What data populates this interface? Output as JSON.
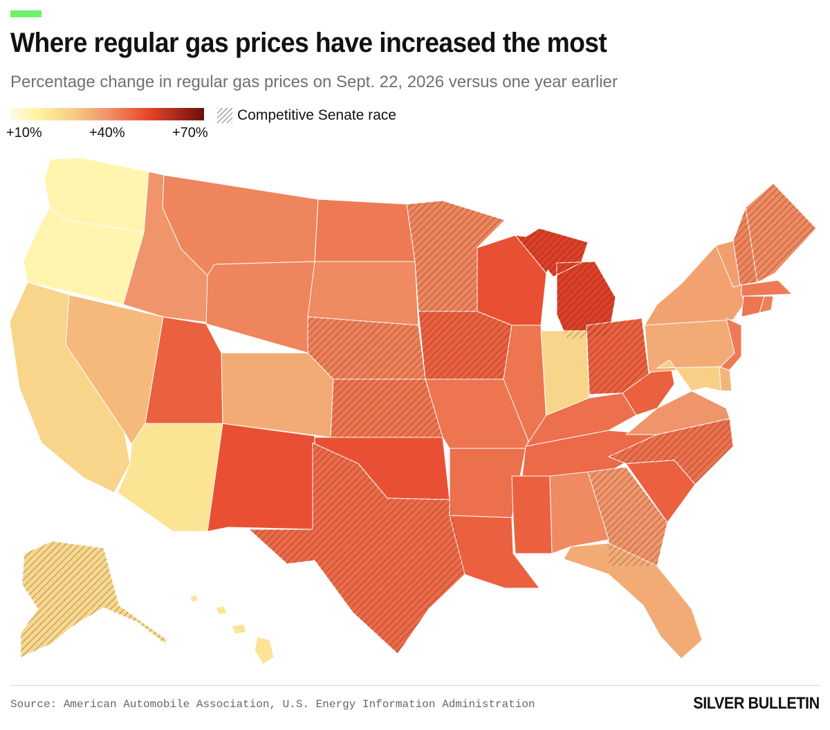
{
  "header": {
    "title": "Where regular gas prices have increased the most",
    "subtitle": "Percentage change in regular gas prices on Sept. 22, 2026 versus one year earlier",
    "accent_color": "#6ef26e"
  },
  "legend": {
    "ticks": [
      "+10%",
      "+40%",
      "+70%"
    ],
    "tick_values": [
      10,
      40,
      70
    ],
    "scale_min": 5,
    "scale_max": 75,
    "hatch_label": "Competitive Senate race",
    "stops": [
      {
        "value": 5,
        "color": "#fdfbe4"
      },
      {
        "value": 15,
        "color": "#fff3a0"
      },
      {
        "value": 27,
        "color": "#f7cf86"
      },
      {
        "value": 40,
        "color": "#f0956a"
      },
      {
        "value": 55,
        "color": "#e8452a"
      },
      {
        "value": 75,
        "color": "#6b0f0f"
      }
    ]
  },
  "map_data": {
    "metric": "Percentage change in regular gas prices",
    "states": [
      {
        "abbr": "WA",
        "value": 13,
        "competitive": false
      },
      {
        "abbr": "OR",
        "value": 13,
        "competitive": false
      },
      {
        "abbr": "CA",
        "value": 25,
        "competitive": false
      },
      {
        "abbr": "NV",
        "value": 32,
        "competitive": false
      },
      {
        "abbr": "ID",
        "value": 40,
        "competitive": false
      },
      {
        "abbr": "MT",
        "value": 43,
        "competitive": false
      },
      {
        "abbr": "WY",
        "value": 43,
        "competitive": false
      },
      {
        "abbr": "UT",
        "value": 50,
        "competitive": false
      },
      {
        "abbr": "AZ",
        "value": 20,
        "competitive": false
      },
      {
        "abbr": "CO",
        "value": 35,
        "competitive": false
      },
      {
        "abbr": "NM",
        "value": 53,
        "competitive": false
      },
      {
        "abbr": "ND",
        "value": 45,
        "competitive": false
      },
      {
        "abbr": "SD",
        "value": 42,
        "competitive": false
      },
      {
        "abbr": "NE",
        "value": 44,
        "competitive": true
      },
      {
        "abbr": "KS",
        "value": 46,
        "competitive": true
      },
      {
        "abbr": "OK",
        "value": 53,
        "competitive": false
      },
      {
        "abbr": "TX",
        "value": 48,
        "competitive": true
      },
      {
        "abbr": "MN",
        "value": 43,
        "competitive": true
      },
      {
        "abbr": "IA",
        "value": 50,
        "competitive": true
      },
      {
        "abbr": "MO",
        "value": 46,
        "competitive": false
      },
      {
        "abbr": "AR",
        "value": 47,
        "competitive": false
      },
      {
        "abbr": "LA",
        "value": 50,
        "competitive": false
      },
      {
        "abbr": "WI",
        "value": 53,
        "competitive": false
      },
      {
        "abbr": "IL",
        "value": 46,
        "competitive": false
      },
      {
        "abbr": "MI",
        "value": 57,
        "competitive": true
      },
      {
        "abbr": "IN",
        "value": 25,
        "competitive": false
      },
      {
        "abbr": "OH",
        "value": 50,
        "competitive": true
      },
      {
        "abbr": "KY",
        "value": 47,
        "competitive": false
      },
      {
        "abbr": "TN",
        "value": 48,
        "competitive": false
      },
      {
        "abbr": "MS",
        "value": 50,
        "competitive": false
      },
      {
        "abbr": "AL",
        "value": 42,
        "competitive": false
      },
      {
        "abbr": "GA",
        "value": 40,
        "competitive": true
      },
      {
        "abbr": "FL",
        "value": 35,
        "competitive": false
      },
      {
        "abbr": "SC",
        "value": 50,
        "competitive": false
      },
      {
        "abbr": "NC",
        "value": 47,
        "competitive": true
      },
      {
        "abbr": "VA",
        "value": 40,
        "competitive": false
      },
      {
        "abbr": "WV",
        "value": 50,
        "competitive": false
      },
      {
        "abbr": "PA",
        "value": 35,
        "competitive": false
      },
      {
        "abbr": "NY",
        "value": 37,
        "competitive": false
      },
      {
        "abbr": "VT",
        "value": 38,
        "competitive": false
      },
      {
        "abbr": "NH",
        "value": 43,
        "competitive": true
      },
      {
        "abbr": "ME",
        "value": 42,
        "competitive": true
      },
      {
        "abbr": "MA",
        "value": 45,
        "competitive": false
      },
      {
        "abbr": "CT",
        "value": 46,
        "competitive": false
      },
      {
        "abbr": "RI",
        "value": 44,
        "competitive": false
      },
      {
        "abbr": "NJ",
        "value": 45,
        "competitive": false
      },
      {
        "abbr": "DE",
        "value": 33,
        "competitive": false
      },
      {
        "abbr": "MD",
        "value": 27,
        "competitive": false
      },
      {
        "abbr": "AK",
        "value": 24,
        "competitive": true
      },
      {
        "abbr": "HI",
        "value": 20,
        "competitive": false
      }
    ]
  },
  "footer": {
    "source": "Source: American Automobile Association, U.S. Energy Information Administration",
    "brand": "SILVER BULLETIN"
  }
}
